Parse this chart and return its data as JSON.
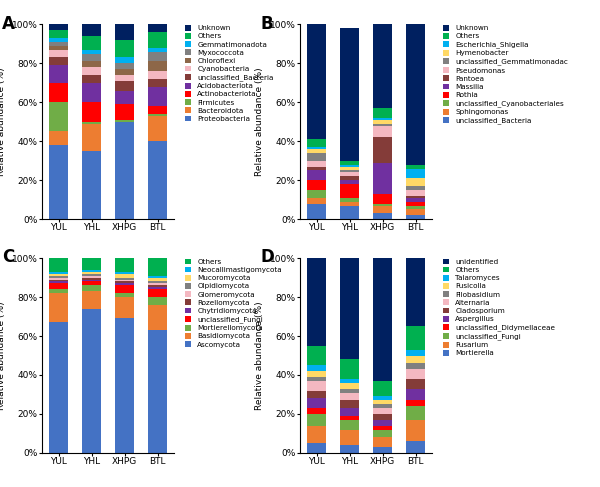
{
  "categories": [
    "YUL",
    "YHL",
    "XHPG",
    "BTL"
  ],
  "A_labels": [
    "Proteobacteria",
    "Bacteroidota",
    "Firmicutes",
    "Actinobacteriota",
    "Acidobacteriota",
    "unclassified_Bacteria",
    "Cyanobacteria",
    "Chloroflexi",
    "Myxococcota",
    "Gemmatimonadota",
    "Others",
    "Unknown"
  ],
  "A_colors": [
    "#4472c4",
    "#ed7d31",
    "#70ad47",
    "#ff0000",
    "#7030a0",
    "#843c39",
    "#f4b8c1",
    "#8d6748",
    "#808080",
    "#00b0f0",
    "#00b050",
    "#002060"
  ],
  "A_data": {
    "YUL": [
      38,
      7,
      15,
      10,
      9,
      4,
      4,
      2,
      2,
      2,
      4,
      3
    ],
    "YHL": [
      35,
      14,
      1,
      10,
      10,
      4,
      4,
      3,
      4,
      2,
      7,
      6
    ],
    "XHPG": [
      50,
      0,
      1,
      8,
      7,
      5,
      3,
      3,
      3,
      3,
      9,
      8
    ],
    "BTL": [
      40,
      13,
      1,
      4,
      10,
      4,
      4,
      5,
      5,
      2,
      8,
      4
    ]
  },
  "B_labels": [
    "unclassified_Bacteria",
    "Sphingomonas",
    "unclassified_Cyanobacteriales",
    "Rothia",
    "Massilia",
    "Pantoea",
    "Pseudomonas",
    "unclassified_Gemmatimonadac",
    "Hymenobacter",
    "Escherichia_Shigella",
    "Others",
    "Unknown"
  ],
  "B_colors": [
    "#4472c4",
    "#ed7d31",
    "#70ad47",
    "#ff0000",
    "#7030a0",
    "#843c39",
    "#f4b8c1",
    "#808080",
    "#ffd966",
    "#00b0f0",
    "#00b050",
    "#002060"
  ],
  "B_data": {
    "YUL": [
      8,
      3,
      4,
      5,
      5,
      2,
      3,
      4,
      2,
      1,
      4,
      59
    ],
    "YHL": [
      7,
      2,
      2,
      7,
      2,
      2,
      2,
      1,
      2,
      1,
      2,
      68
    ],
    "XHPG": [
      3,
      4,
      1,
      5,
      16,
      13,
      6,
      1,
      2,
      1,
      5,
      43
    ],
    "BTL": [
      2,
      3,
      2,
      2,
      2,
      1,
      3,
      2,
      4,
      5,
      2,
      72
    ]
  },
  "C_labels": [
    "Ascomycota",
    "Basidiomycota",
    "Mortierellomycota",
    "unclassified_Fungi",
    "Chytridiomycota",
    "Rozellomycota",
    "Glomeromycota",
    "Olpidiomycota",
    "Mucoromycota",
    "Neocallimastigomycota",
    "Others"
  ],
  "C_colors": [
    "#4472c4",
    "#ed7d31",
    "#70ad47",
    "#ff0000",
    "#7030a0",
    "#843c39",
    "#f4b8c1",
    "#808080",
    "#ffd966",
    "#00b0f0",
    "#00b050"
  ],
  "C_data": {
    "YUL": [
      67,
      15,
      2,
      3,
      1,
      1,
      1,
      1,
      1,
      1,
      7
    ],
    "YHL": [
      74,
      9,
      3,
      2,
      1,
      1,
      1,
      1,
      1,
      1,
      6
    ],
    "XHPG": [
      69,
      11,
      2,
      4,
      1,
      1,
      1,
      1,
      2,
      1,
      7
    ],
    "BTL": [
      63,
      13,
      4,
      4,
      1,
      1,
      1,
      1,
      2,
      1,
      9
    ]
  },
  "D_labels": [
    "Mortierella",
    "Fusarium",
    "unclassified_Fungi",
    "unclassified_Didymellaceae",
    "Aspergillus",
    "Cladosporium",
    "Alternaria",
    "Filobasidium",
    "Fusicolla",
    "Talaromyces",
    "Others",
    "unidentified"
  ],
  "D_colors": [
    "#4472c4",
    "#ed7d31",
    "#70ad47",
    "#ff0000",
    "#7030a0",
    "#843c39",
    "#f4b8c1",
    "#808080",
    "#ffd966",
    "#00b0f0",
    "#00b050",
    "#002060"
  ],
  "D_data": {
    "YUL": [
      5,
      9,
      6,
      3,
      5,
      4,
      5,
      2,
      3,
      3,
      10,
      45
    ],
    "YHL": [
      4,
      8,
      5,
      2,
      4,
      4,
      4,
      2,
      3,
      2,
      10,
      52
    ],
    "XHPG": [
      3,
      5,
      4,
      2,
      3,
      3,
      3,
      2,
      2,
      2,
      8,
      63
    ],
    "BTL": [
      6,
      11,
      7,
      3,
      6,
      5,
      5,
      3,
      4,
      3,
      12,
      35
    ]
  },
  "panel_labels": [
    "A",
    "B",
    "C",
    "D"
  ],
  "ylabel": "Relative abundance (%)",
  "yticks": [
    0,
    20,
    40,
    60,
    80,
    100
  ],
  "yticklabels": [
    "0%",
    "20%",
    "40%",
    "60%",
    "80%",
    "100%"
  ]
}
